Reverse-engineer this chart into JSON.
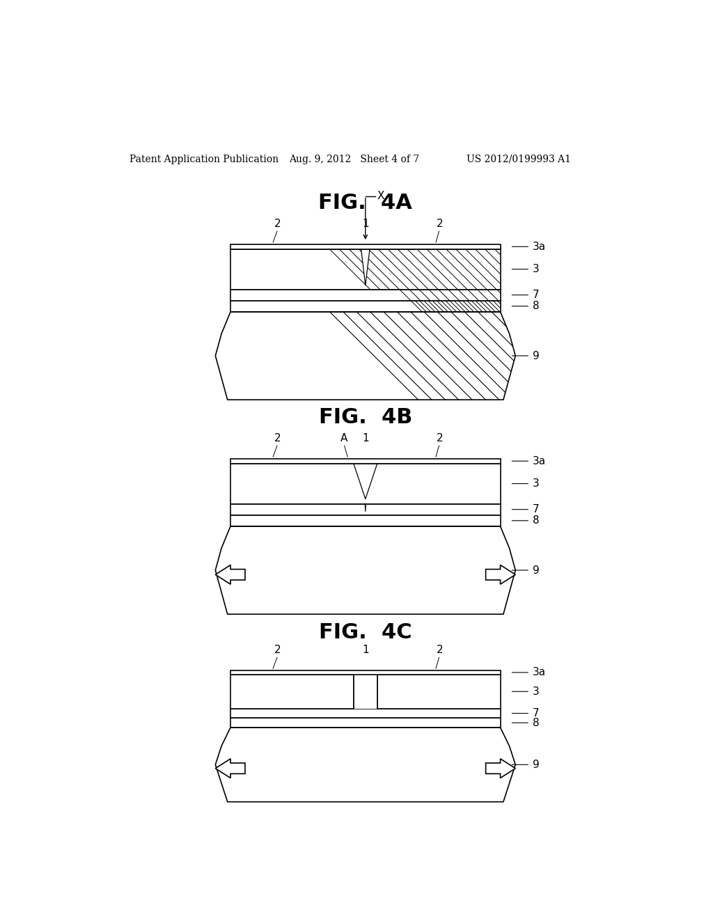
{
  "bg_color": "#ffffff",
  "header_left": "Patent Application Publication",
  "header_center": "Aug. 9, 2012   Sheet 4 of 7",
  "header_right": "US 2012/0199993 A1",
  "fig_labels": [
    "FIG.  4A",
    "FIG.  4B",
    "FIG.  4C"
  ],
  "crack_types": [
    "crack_v",
    "crack_v_open",
    "crack_open"
  ],
  "has_arrows": [
    false,
    true,
    true
  ],
  "layer_labels": [
    "3a",
    "3",
    "7",
    "8",
    "9"
  ],
  "top_labels": [
    "2",
    "1",
    "2"
  ]
}
